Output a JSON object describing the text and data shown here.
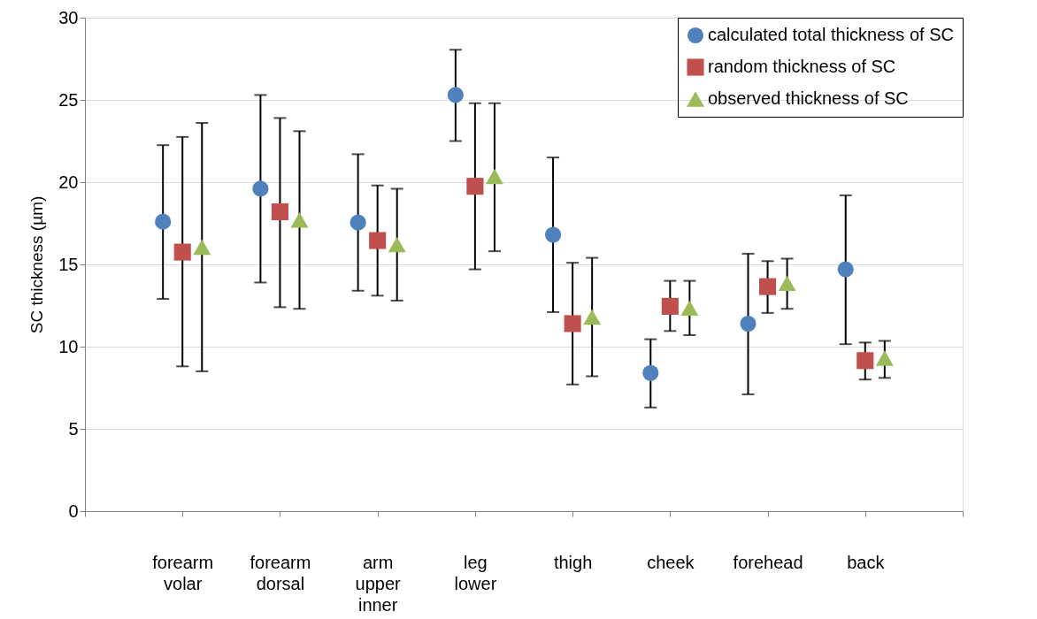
{
  "chart_data": {
    "type": "scatter",
    "ylabel": "SC thickness (µm)",
    "categories": [
      "forearm volar",
      "forearm dorsal",
      "arm upper inner",
      "leg lower",
      "thigh",
      "cheek",
      "forehead",
      "back"
    ],
    "ylim": [
      0,
      30
    ],
    "yticks": [
      0,
      5,
      10,
      15,
      20,
      25,
      30
    ],
    "grid": "y",
    "legend": "top right",
    "series": [
      {
        "name": "calculated total thickness of SC",
        "color": "#4f81bd",
        "marker": "circle",
        "values": [
          17.6,
          19.6,
          17.55,
          25.3,
          16.8,
          8.4,
          11.4,
          14.7
        ],
        "errors": [
          [
            12.9,
            22.25
          ],
          [
            13.9,
            25.3
          ],
          [
            13.4,
            21.7
          ],
          [
            22.5,
            28.05
          ],
          [
            12.1,
            21.5
          ],
          [
            6.3,
            10.45
          ],
          [
            7.1,
            15.65
          ],
          [
            10.15,
            19.2
          ]
        ]
      },
      {
        "name": "random thickness of SC",
        "color": "#c0504d",
        "marker": "square",
        "values": [
          15.75,
          18.2,
          16.45,
          19.75,
          11.4,
          12.45,
          13.65,
          9.15
        ],
        "errors": [
          [
            8.8,
            22.75
          ],
          [
            12.4,
            23.9
          ],
          [
            13.1,
            19.8
          ],
          [
            14.7,
            24.8
          ],
          [
            7.7,
            15.1
          ],
          [
            10.95,
            14.0
          ],
          [
            12.05,
            15.2
          ],
          [
            8.0,
            10.25
          ]
        ]
      },
      {
        "name": "observed thickness of SC",
        "color": "#9bbb59",
        "marker": "triangle",
        "values": [
          16.05,
          17.7,
          16.2,
          20.35,
          11.8,
          12.35,
          13.85,
          9.3
        ],
        "errors": [
          [
            8.5,
            23.6
          ],
          [
            12.3,
            23.1
          ],
          [
            12.8,
            19.6
          ],
          [
            15.8,
            24.8
          ],
          [
            8.2,
            15.4
          ],
          [
            10.7,
            14.0
          ],
          [
            12.3,
            15.35
          ],
          [
            8.1,
            10.35
          ]
        ]
      }
    ]
  }
}
